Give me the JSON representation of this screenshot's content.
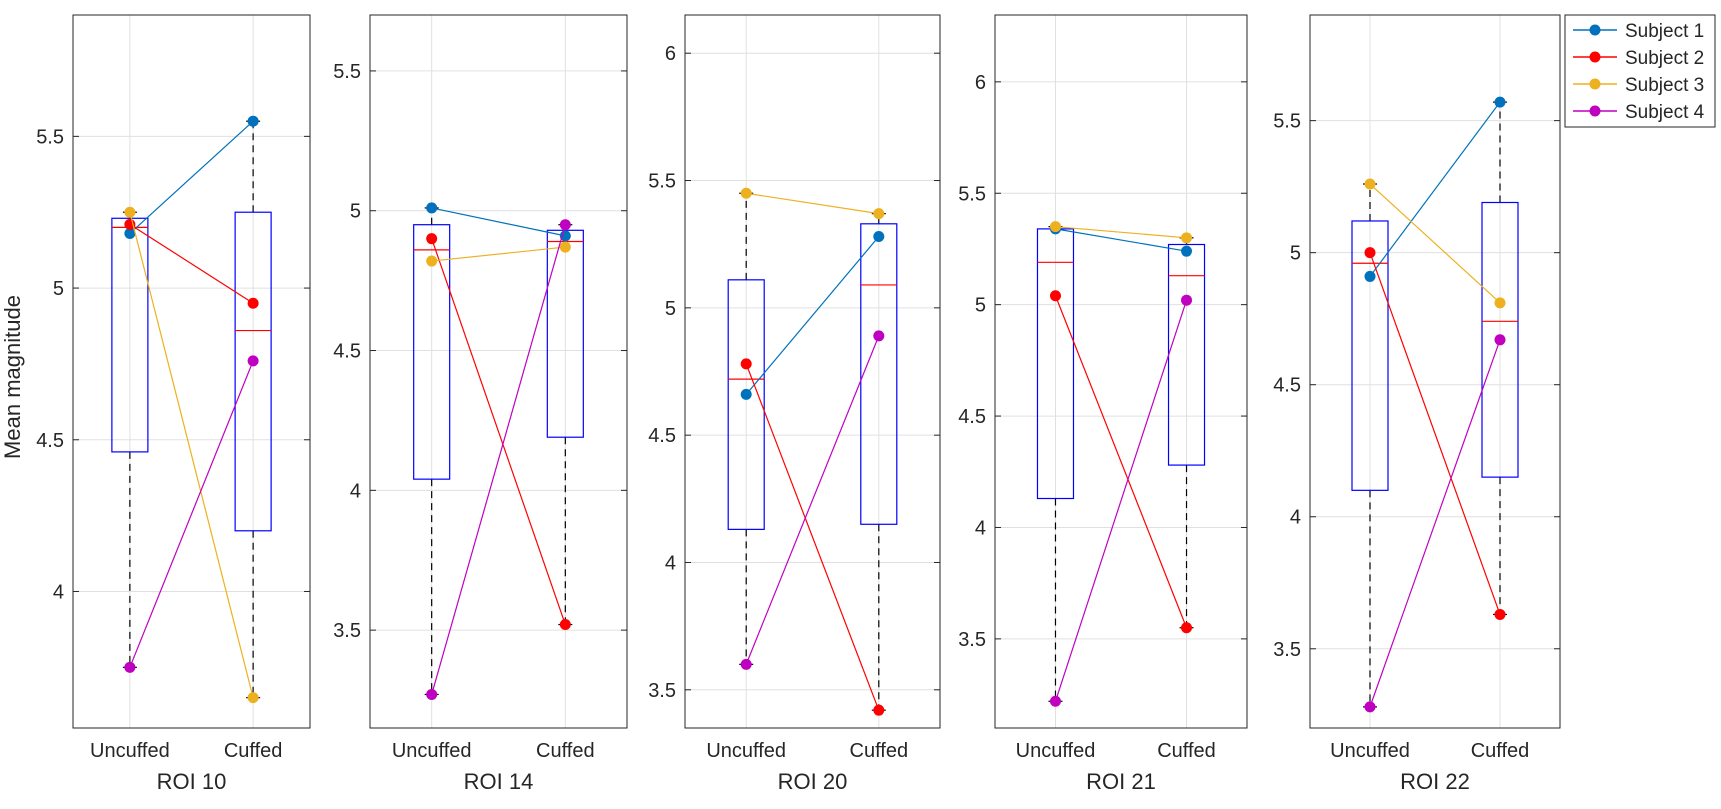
{
  "figure": {
    "ylabel": "Mean magnitude"
  },
  "colors": {
    "box": "#0000ff",
    "median": "#ff0000",
    "whisker": "#000000",
    "grid": "#e0e0e0",
    "axis": "#262626"
  },
  "legend": {
    "placement": "top-right (outside plots)",
    "entries": [
      {
        "label": "Subject 1",
        "color": "#0072bd"
      },
      {
        "label": "Subject 2",
        "color": "#ff0000"
      },
      {
        "label": "Subject 3",
        "color": "#edb120"
      },
      {
        "label": "Subject 4",
        "color": "#c000c0"
      }
    ]
  },
  "chart_data": [
    {
      "type": "box",
      "title": "ROI 10",
      "xlabel": "ROI 10",
      "categories": [
        "Uncuffed",
        "Cuffed"
      ],
      "ylim": [
        3.55,
        5.9
      ],
      "yticks": [
        "4",
        "4.5",
        "5",
        "5.5"
      ],
      "grid": true,
      "boxes": [
        {
          "q1": 4.46,
          "median": 5.2,
          "q3": 5.23,
          "lo": 3.75,
          "hi": 5.25
        },
        {
          "q1": 4.2,
          "median": 4.86,
          "q3": 5.25,
          "lo": 3.65,
          "hi": 5.55
        }
      ],
      "series": [
        {
          "name": "Subject 1",
          "values": [
            5.18,
            5.55
          ]
        },
        {
          "name": "Subject 2",
          "values": [
            5.21,
            4.95
          ]
        },
        {
          "name": "Subject 3",
          "values": [
            5.25,
            3.65
          ]
        },
        {
          "name": "Subject 4",
          "values": [
            3.75,
            4.76
          ]
        }
      ]
    },
    {
      "type": "box",
      "title": "ROI 14",
      "xlabel": "ROI 14",
      "categories": [
        "Uncuffed",
        "Cuffed"
      ],
      "ylim": [
        3.15,
        5.7
      ],
      "yticks": [
        "3.5",
        "4",
        "4.5",
        "5",
        "5.5"
      ],
      "grid": true,
      "boxes": [
        {
          "q1": 4.04,
          "median": 4.86,
          "q3": 4.95,
          "lo": 3.27,
          "hi": 5.01
        },
        {
          "q1": 4.19,
          "median": 4.89,
          "q3": 4.93,
          "lo": 3.52,
          "hi": 4.95
        }
      ],
      "series": [
        {
          "name": "Subject 1",
          "values": [
            5.01,
            4.91
          ]
        },
        {
          "name": "Subject 2",
          "values": [
            4.9,
            3.52
          ]
        },
        {
          "name": "Subject 3",
          "values": [
            4.82,
            4.87
          ]
        },
        {
          "name": "Subject 4",
          "values": [
            3.27,
            4.95
          ]
        }
      ]
    },
    {
      "type": "box",
      "title": "ROI 20",
      "xlabel": "ROI 20",
      "categories": [
        "Uncuffed",
        "Cuffed"
      ],
      "ylim": [
        3.35,
        6.15
      ],
      "yticks": [
        "3.5",
        "4",
        "4.5",
        "5",
        "5.5",
        "6"
      ],
      "grid": true,
      "boxes": [
        {
          "q1": 4.13,
          "median": 4.72,
          "q3": 5.11,
          "lo": 3.6,
          "hi": 5.45
        },
        {
          "q1": 4.15,
          "median": 5.09,
          "q3": 5.33,
          "lo": 3.42,
          "hi": 5.37
        }
      ],
      "series": [
        {
          "name": "Subject 1",
          "values": [
            4.66,
            5.28
          ]
        },
        {
          "name": "Subject 2",
          "values": [
            4.78,
            3.42
          ]
        },
        {
          "name": "Subject 3",
          "values": [
            5.45,
            5.37
          ]
        },
        {
          "name": "Subject 4",
          "values": [
            3.6,
            4.89
          ]
        }
      ]
    },
    {
      "type": "box",
      "title": "ROI 21",
      "xlabel": "ROI 21",
      "categories": [
        "Uncuffed",
        "Cuffed"
      ],
      "ylim": [
        3.1,
        6.3
      ],
      "yticks": [
        "3.5",
        "4",
        "4.5",
        "5",
        "5.5",
        "6"
      ],
      "grid": true,
      "boxes": [
        {
          "q1": 4.13,
          "median": 5.19,
          "q3": 5.34,
          "lo": 3.22,
          "hi": 5.35
        },
        {
          "q1": 4.28,
          "median": 5.13,
          "q3": 5.27,
          "lo": 3.55,
          "hi": 5.3
        }
      ],
      "series": [
        {
          "name": "Subject 1",
          "values": [
            5.34,
            5.24
          ]
        },
        {
          "name": "Subject 2",
          "values": [
            5.04,
            3.55
          ]
        },
        {
          "name": "Subject 3",
          "values": [
            5.35,
            5.3
          ]
        },
        {
          "name": "Subject 4",
          "values": [
            3.22,
            5.02
          ]
        }
      ]
    },
    {
      "type": "box",
      "title": "ROI 22",
      "xlabel": "ROI 22",
      "categories": [
        "Uncuffed",
        "Cuffed"
      ],
      "ylim": [
        3.2,
        5.9
      ],
      "yticks": [
        "3.5",
        "4",
        "4.5",
        "5",
        "5.5"
      ],
      "grid": true,
      "boxes": [
        {
          "q1": 4.1,
          "median": 4.96,
          "q3": 5.12,
          "lo": 3.28,
          "hi": 5.26
        },
        {
          "q1": 4.15,
          "median": 4.74,
          "q3": 5.19,
          "lo": 3.63,
          "hi": 5.57
        }
      ],
      "series": [
        {
          "name": "Subject 1",
          "values": [
            4.91,
            5.57
          ]
        },
        {
          "name": "Subject 2",
          "values": [
            5.0,
            3.63
          ]
        },
        {
          "name": "Subject 3",
          "values": [
            5.26,
            4.81
          ]
        },
        {
          "name": "Subject 4",
          "values": [
            3.28,
            4.67
          ]
        }
      ]
    }
  ]
}
